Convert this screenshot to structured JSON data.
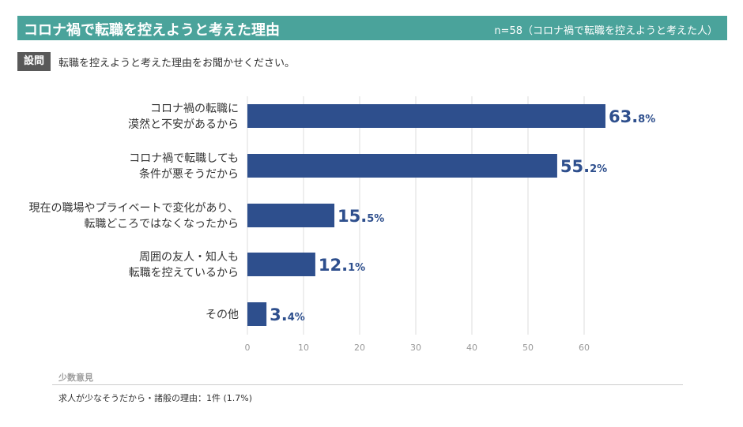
{
  "header": {
    "title": "コロナ禍で転職を控えようと考えた理由",
    "sample_note": "n=58（コロナ禍で転職を控えようと考えた人）"
  },
  "question": {
    "badge": "設問",
    "text": "転職を控えようと考えた理由をお聞かせください。"
  },
  "chart_data": {
    "type": "bar",
    "orientation": "horizontal",
    "title": "コロナ禍で転職を控えようと考えた理由",
    "categories": [
      [
        "コロナ禍の転職に",
        "漠然と不安があるから"
      ],
      [
        "コロナ禍で転職しても",
        "条件が悪そうだから"
      ],
      [
        "現在の職場やプライベートで変化があり、",
        "転職どころではなくなったから"
      ],
      [
        "周囲の友人・知人も",
        "転職を控えているから"
      ],
      [
        "その他"
      ]
    ],
    "values": [
      63.8,
      55.2,
      15.5,
      12.1,
      3.4
    ],
    "value_labels": [
      {
        "int": "63.",
        "dec": "8%"
      },
      {
        "int": "55.",
        "dec": "2%"
      },
      {
        "int": "15.",
        "dec": "5%"
      },
      {
        "int": "12.",
        "dec": "1%"
      },
      {
        "int": "3.",
        "dec": "4%"
      }
    ],
    "xlim": [
      0,
      70
    ],
    "xticks": [
      0,
      10,
      20,
      30,
      40,
      50,
      60
    ],
    "unit": "%",
    "bar_color": "#2e4f8d",
    "grid": true
  },
  "minority": {
    "title": "少数意見",
    "text": "求人が少なそうだから・諸般の理由：1件 (1.7%)"
  }
}
